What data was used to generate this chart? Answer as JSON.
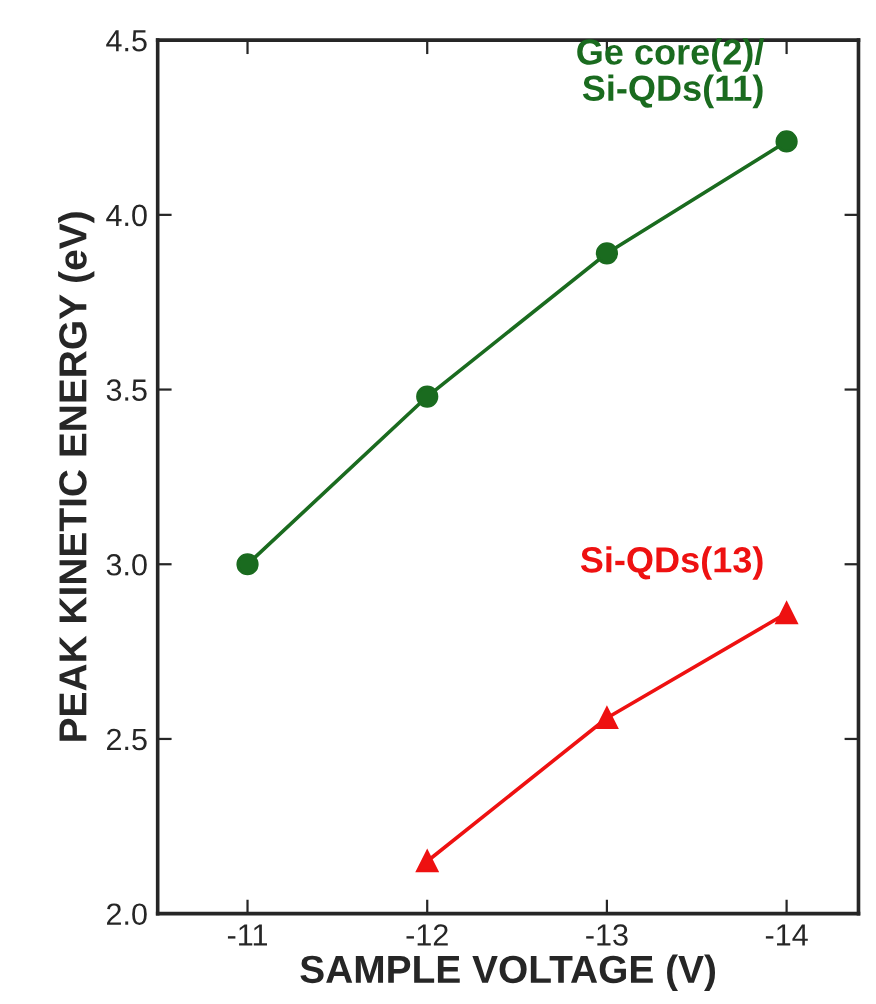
{
  "chart_data": {
    "type": "line",
    "xlabel": "SAMPLE VOLTAGE (V)",
    "ylabel": "PEAK KINETIC ENERGY (eV)",
    "xlim": [
      -10.5,
      -14.4
    ],
    "xticks": [
      -11,
      -12,
      -13,
      -14
    ],
    "ylim": [
      2.0,
      4.5
    ],
    "yticks": [
      {
        "value": 2.0,
        "label": "2.0"
      },
      {
        "value": 2.5,
        "label": "2.5"
      },
      {
        "value": 3.0,
        "label": "3.0"
      },
      {
        "value": 3.5,
        "label": "3.5"
      },
      {
        "value": 4.0,
        "label": "4.0"
      },
      {
        "value": 4.5,
        "label": "4.5"
      }
    ],
    "grid": false,
    "legend": false,
    "series": [
      {
        "name": "Ge core(2)/\nSi-QDs(11)",
        "color": "#1a6b1f",
        "marker": "circle",
        "x": [
          -11,
          -12,
          -13,
          -14
        ],
        "values": [
          3.0,
          3.48,
          3.89,
          4.21
        ]
      },
      {
        "name": "Si-QDs(13)",
        "color": "#ee1111",
        "marker": "triangle",
        "x": [
          -12,
          -13,
          -14
        ],
        "values": [
          2.15,
          2.56,
          2.86
        ]
      }
    ]
  }
}
